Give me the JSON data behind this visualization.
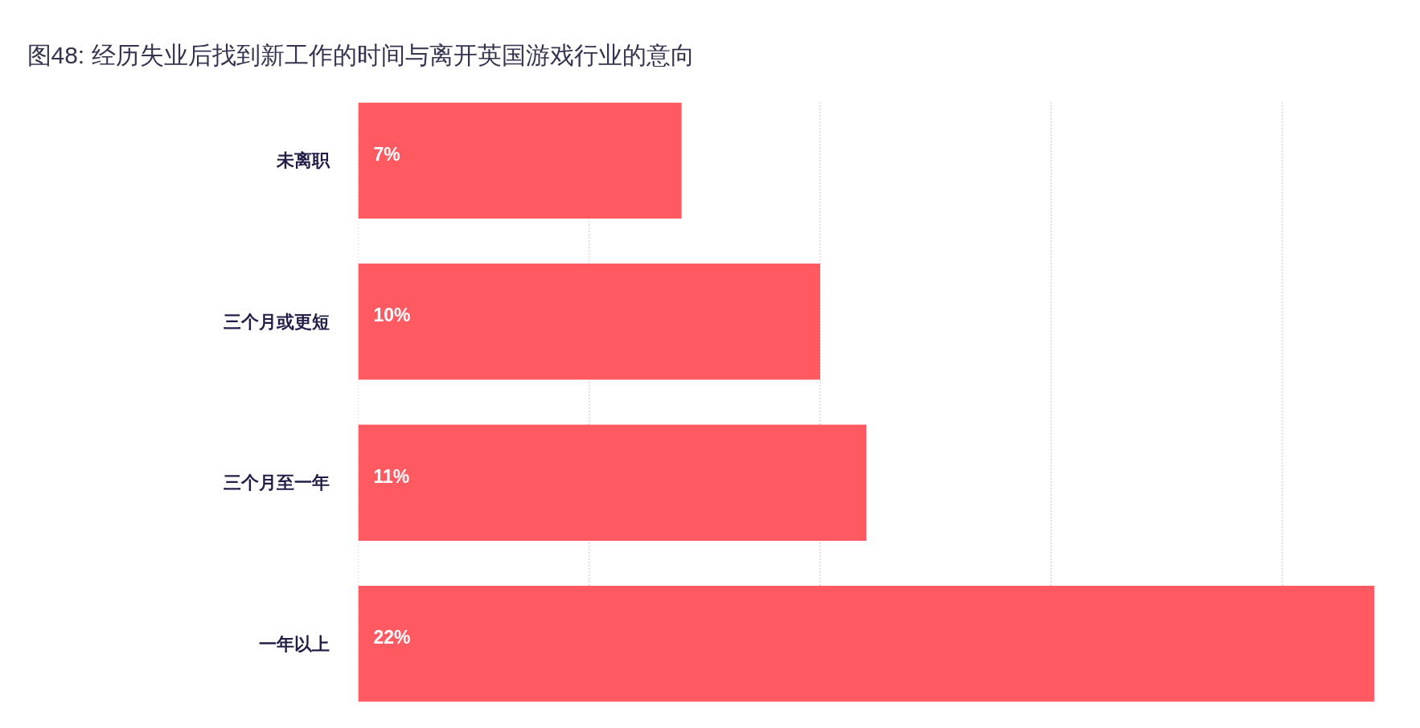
{
  "chart_data": {
    "type": "bar",
    "orientation": "horizontal",
    "title": "图48: 经历失业后找到新工作的时间与离开英国游戏行业的意向",
    "categories": [
      "未离职",
      "三个月或更短",
      "三个月至一年",
      "一年以上"
    ],
    "values": [
      7,
      10,
      11,
      22
    ],
    "color": "#ff5a62",
    "value_labels": [
      "7%",
      "10%",
      "11%",
      "22%"
    ],
    "xlim": [
      0,
      22
    ],
    "xticks": [
      {
        "value": 0,
        "label": null
      },
      {
        "value": 5,
        "label": null
      },
      {
        "value": 10,
        "label": null
      },
      {
        "value": 15,
        "label": null
      },
      {
        "value": 20,
        "label": null
      }
    ],
    "grid": "x",
    "tick_labels": "y"
  }
}
